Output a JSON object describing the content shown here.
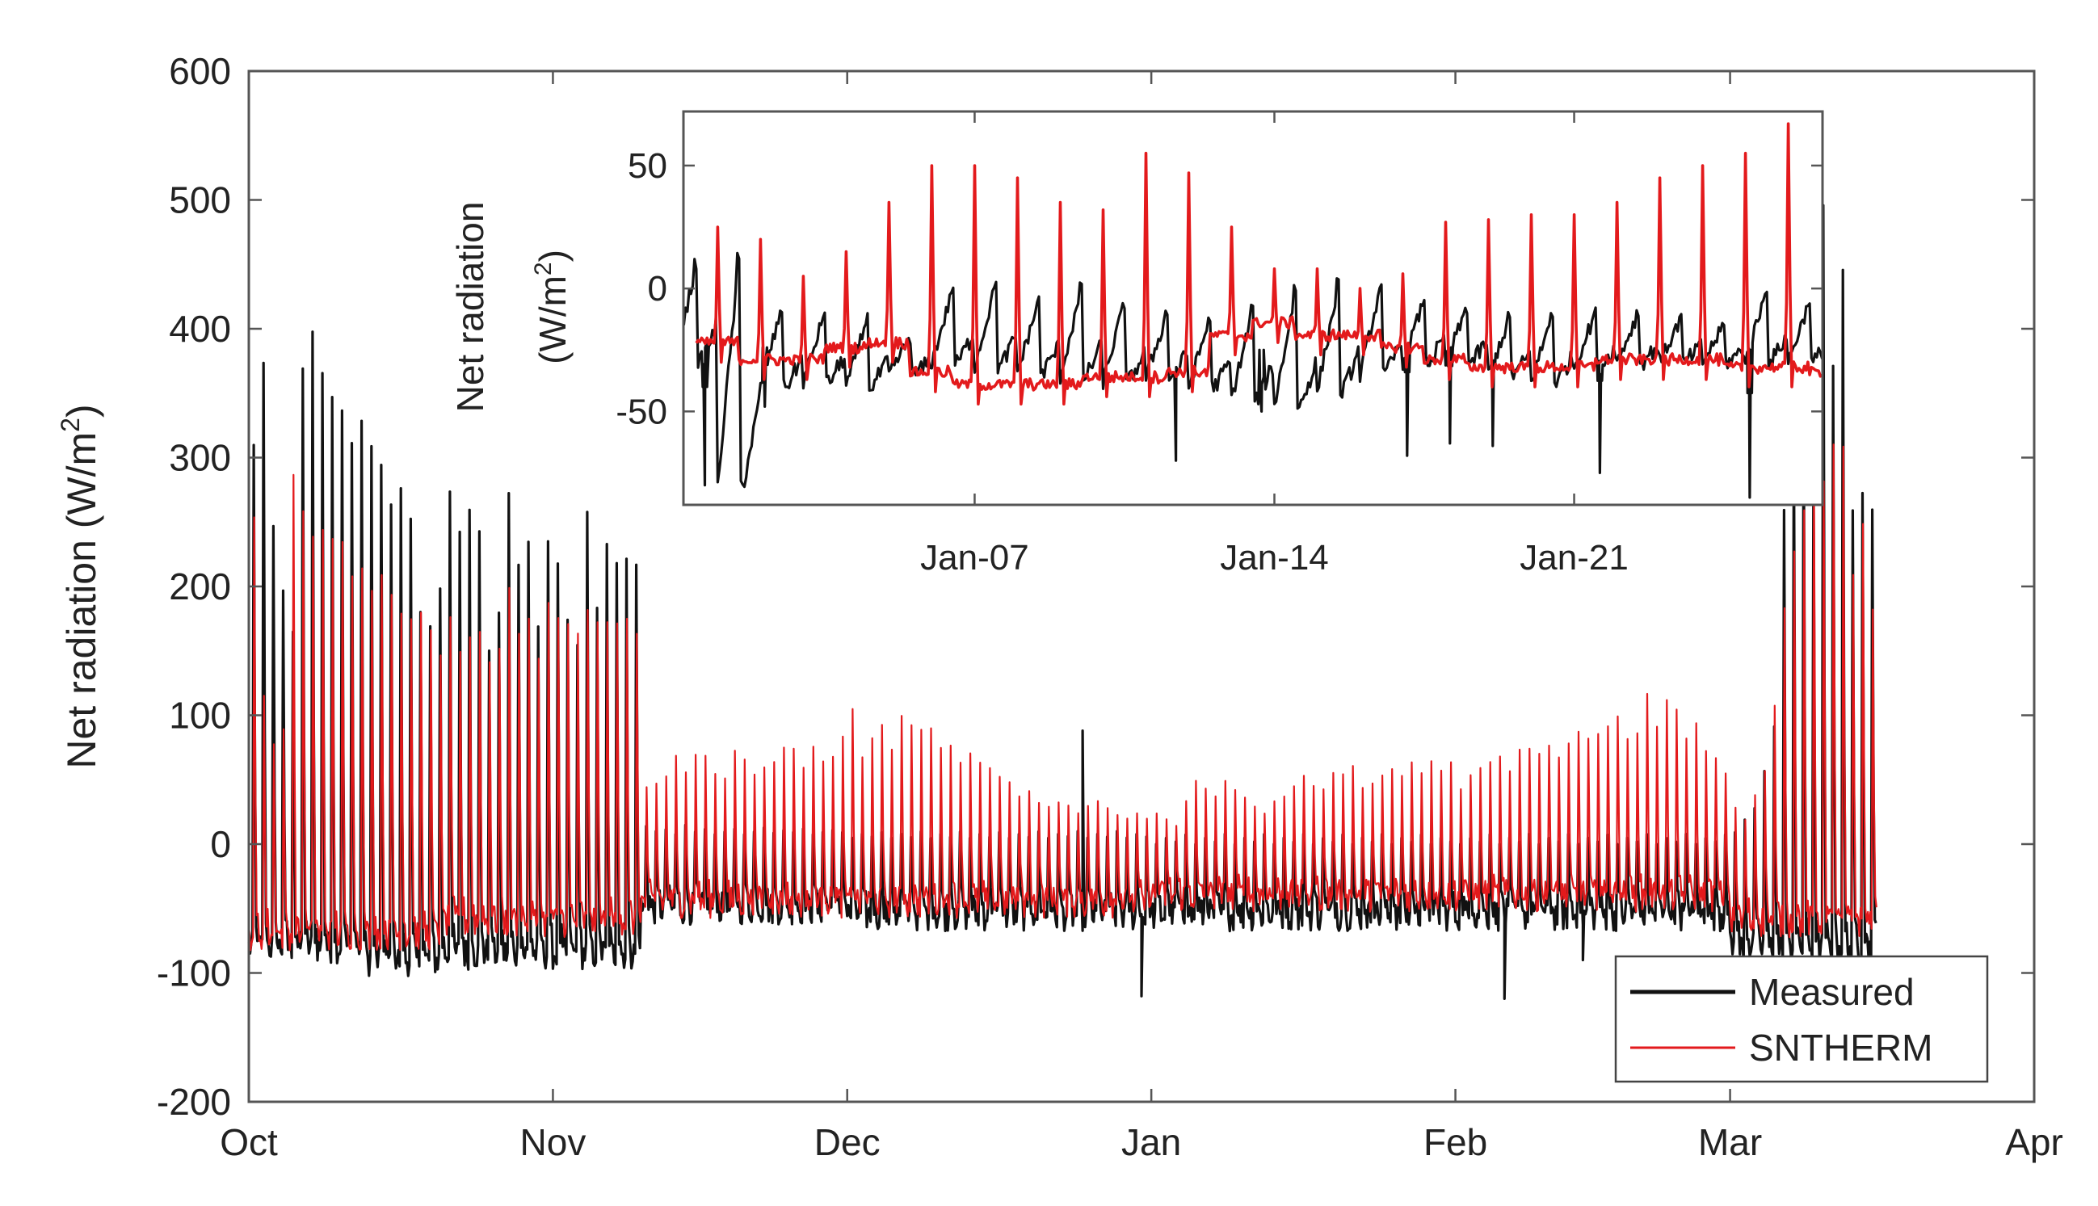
{
  "chart_data": [
    {
      "id": "main",
      "type": "line",
      "title": "",
      "xlabel": "",
      "ylabel": "Net radiation (W/m2)",
      "ylabel_parts": {
        "main": "Net radiation (W/m",
        "superscript": "2",
        "close": ")"
      },
      "x_unit": "days since Oct 1",
      "xlim": [
        0,
        182
      ],
      "ylim": [
        -200,
        600
      ],
      "grid": false,
      "x_ticks": [
        {
          "value": 0,
          "label": "Oct"
        },
        {
          "value": 31,
          "label": "Nov"
        },
        {
          "value": 61,
          "label": "Dec"
        },
        {
          "value": 92,
          "label": "Jan"
        },
        {
          "value": 123,
          "label": "Feb"
        },
        {
          "value": 151,
          "label": "Mar"
        },
        {
          "value": 182,
          "label": "Apr"
        }
      ],
      "y_ticks": [
        {
          "value": 600,
          "label": "600"
        },
        {
          "value": 500,
          "label": "500"
        },
        {
          "value": 400,
          "label": "400"
        },
        {
          "value": 300,
          "label": "300"
        },
        {
          "value": 200,
          "label": "200"
        },
        {
          "value": 100,
          "label": "100"
        },
        {
          "value": 0,
          "label": "0"
        },
        {
          "value": -100,
          "label": "-100"
        },
        {
          "value": -200,
          "label": "-200"
        }
      ],
      "legend": {
        "position": "bottom-right",
        "entries": [
          {
            "name": "Measured",
            "color": "#111111"
          },
          {
            "name": "SNTHERM",
            "color": "#e31a1c"
          }
        ]
      },
      "series": [
        {
          "name": "Measured",
          "color": "#111111",
          "segments": [
            {
              "start": 0,
              "end": 12,
              "peak": [
                320,
                400,
                250,
                210,
                180,
                400,
                410,
                395,
                375,
                365,
                345,
                330
              ],
              "trough": -80
            },
            {
              "start": 12,
              "end": 20,
              "peak": [
                320,
                310,
                290,
                280,
                260,
                200,
                175,
                210
              ],
              "trough": -90
            },
            {
              "start": 20,
              "end": 40,
              "peak": [
                300,
                260,
                270,
                250,
                165,
                180,
                280,
                240,
                245,
                170,
                250,
                220,
                180,
                170,
                265,
                185,
                240,
                240,
                230,
                225
              ],
              "trough": -85
            },
            {
              "start": 40,
              "end": 61,
              "peak": [
                15,
                10,
                12,
                8,
                15,
                10,
                12,
                8,
                10,
                12,
                8,
                10,
                14,
                9,
                11,
                10,
                12,
                8,
                10,
                12,
                10
              ],
              "trough": -50
            },
            {
              "start": 61,
              "end": 92,
              "peak": [
                5,
                8,
                6,
                10,
                5,
                8,
                6,
                10,
                5,
                8,
                6,
                10,
                5,
                8,
                6,
                10,
                5,
                8,
                6,
                10,
                5,
                8,
                6,
                10,
                5,
                8,
                6,
                10,
                5,
                8,
                6
              ],
              "trough": -55
            },
            {
              "start": 92,
              "end": 123,
              "peak": [
                0,
                5,
                2,
                8,
                0,
                5,
                2,
                8,
                0,
                5,
                2,
                8,
                0,
                5,
                2,
                8,
                0,
                5,
                2,
                8,
                0,
                5,
                2,
                8,
                0,
                5,
                2,
                8,
                0,
                5,
                2
              ],
              "trough": -55
            },
            {
              "start": 123,
              "end": 151,
              "peak": [
                0,
                5,
                2,
                8,
                0,
                5,
                2,
                8,
                0,
                5,
                2,
                8,
                0,
                5,
                2,
                8,
                0,
                5,
                2,
                8,
                0,
                5,
                2,
                8,
                0,
                5,
                2,
                8
              ],
              "trough": -55
            },
            {
              "start": 151,
              "end": 166,
              "peak": [
                10,
                20,
                30,
                60,
                100,
                270,
                340,
                360,
                300,
                500,
                400,
                450,
                260,
                300,
                270
              ],
              "trough": -80
            }
          ],
          "dips": [
            {
              "x": 91,
              "value": -118
            },
            {
              "x": 128,
              "value": -120
            },
            {
              "x": 107,
              "value": -62
            },
            {
              "x": 136,
              "value": -90
            },
            {
              "x": 85,
              "value": 88
            }
          ]
        },
        {
          "name": "SNTHERM",
          "color": "#e31a1c",
          "segments": [
            {
              "start": 0,
              "end": 12,
              "peak": [
                255,
                120,
                80,
                90,
                290,
                285,
                260,
                250,
                245,
                240,
                230,
                220
              ],
              "trough": -70
            },
            {
              "start": 12,
              "end": 20,
              "peak": [
                215,
                210,
                200,
                195,
                190,
                180,
                170,
                160
              ],
              "trough": -70
            },
            {
              "start": 20,
              "end": 40,
              "peak": [
                190,
                160,
                170,
                175,
                150,
                160,
                200,
                180,
                175,
                160,
                190,
                180,
                175,
                165,
                185,
                180,
                190,
                185,
                180,
                175
              ],
              "trough": -60
            },
            {
              "start": 40,
              "end": 61,
              "peak": [
                45,
                50,
                55,
                70,
                60,
                75,
                70,
                60,
                55,
                75,
                70,
                60,
                65,
                70,
                80,
                75,
                60,
                80,
                70,
                75,
                85
              ],
              "trough": -45
            },
            {
              "start": 61,
              "end": 92,
              "peak": [
                115,
                70,
                85,
                95,
                75,
                105,
                100,
                90,
                95,
                80,
                85,
                70,
                75,
                65,
                60,
                55,
                50,
                40,
                45,
                35,
                30,
                35,
                30,
                25,
                30,
                35,
                30,
                25,
                20,
                25,
                20
              ],
              "trough": -45
            },
            {
              "start": 92,
              "end": 123,
              "peak": [
                25,
                20,
                15,
                35,
                50,
                45,
                40,
                50,
                45,
                40,
                30,
                25,
                35,
                40,
                45,
                55,
                50,
                45,
                60,
                55,
                65,
                45,
                50,
                55,
                60,
                55,
                65,
                60,
                70,
                60,
                65
              ],
              "trough": -40
            },
            {
              "start": 123,
              "end": 151,
              "peak": [
                45,
                55,
                60,
                65,
                70,
                60,
                75,
                80,
                75,
                85,
                70,
                80,
                90,
                85,
                95,
                100,
                110,
                90,
                95,
                125,
                100,
                115,
                105,
                90,
                95,
                80,
                70,
                60
              ],
              "trough": -40
            },
            {
              "start": 151,
              "end": 166,
              "peak": [
                30,
                20,
                40,
                60,
                110,
                200,
                250,
                260,
                300,
                310,
                340,
                310,
                220,
                260,
                200
              ],
              "trough": -60
            }
          ]
        }
      ]
    },
    {
      "id": "inset",
      "type": "line",
      "title": "",
      "xlabel": "",
      "ylabel": "Net radiation (W/m2)",
      "ylabel_parts": {
        "line1": "Net radiation",
        "line2_main": "(W/m",
        "superscript": "2",
        "close": ")"
      },
      "x_unit": "days since Jan 1",
      "xlim": [
        0.2,
        26.8
      ],
      "ylim": [
        -88,
        72
      ],
      "grid": false,
      "x_ticks": [
        {
          "value": 7,
          "label": "Jan-07"
        },
        {
          "value": 14,
          "label": "Jan-14"
        },
        {
          "value": 21,
          "label": "Jan-21"
        }
      ],
      "y_ticks": [
        {
          "value": 50,
          "label": "50"
        },
        {
          "value": 0,
          "label": "0"
        },
        {
          "value": -50,
          "label": "-50"
        }
      ],
      "series": [
        {
          "name": "Measured",
          "color": "#111111",
          "day_start": 0,
          "day_step": 1,
          "daily_peak": [
            10,
            12,
            -8,
            -10,
            -12,
            -20,
            0,
            2,
            -5,
            0,
            -6,
            -10,
            -12,
            -8,
            0,
            2,
            2,
            -5,
            -8,
            -12,
            -10,
            -10,
            -10,
            -12,
            -15,
            0,
            -5
          ],
          "daily_min": [
            -30,
            -80,
            -40,
            -38,
            -40,
            -35,
            -30,
            -32,
            -34,
            -36,
            -38,
            -36,
            -40,
            -45,
            -48,
            -42,
            -35,
            -30,
            -30,
            -35,
            -38,
            -32,
            -30,
            -30,
            -30,
            -30,
            -30
          ],
          "dips": [
            {
              "x": 0.7,
              "value": -80
            },
            {
              "x": 2.1,
              "value": -48
            },
            {
              "x": 11.7,
              "value": -70
            },
            {
              "x": 13.7,
              "value": -50
            },
            {
              "x": 17.1,
              "value": -68
            },
            {
              "x": 18.1,
              "value": -63
            },
            {
              "x": 19.1,
              "value": -64
            },
            {
              "x": 21.6,
              "value": -75
            },
            {
              "x": 25.1,
              "value": -85
            }
          ]
        },
        {
          "name": "SNTHERM",
          "color": "#e31a1c",
          "day_start": 0.5,
          "day_step": 1,
          "daily_peak": [
            25,
            20,
            5,
            15,
            35,
            50,
            50,
            45,
            35,
            32,
            55,
            47,
            25,
            8,
            8,
            0,
            6,
            27,
            28,
            30,
            30,
            35,
            45,
            50,
            55,
            67,
            13
          ],
          "daily_min": [
            -28,
            -35,
            -35,
            -30,
            -28,
            -40,
            -45,
            -45,
            -45,
            -42,
            -42,
            -40,
            -25,
            -20,
            -25,
            -25,
            -30,
            -35,
            -38,
            -38,
            -38,
            -35,
            -35,
            -35,
            -38,
            -38,
            -40
          ]
        }
      ]
    }
  ],
  "legend": {
    "measured_label": "Measured",
    "sntherm_label": "SNTHERM"
  },
  "colors": {
    "measured": "#111111",
    "sntherm": "#e31a1c",
    "axes": "#555555",
    "background": "#ffffff"
  }
}
